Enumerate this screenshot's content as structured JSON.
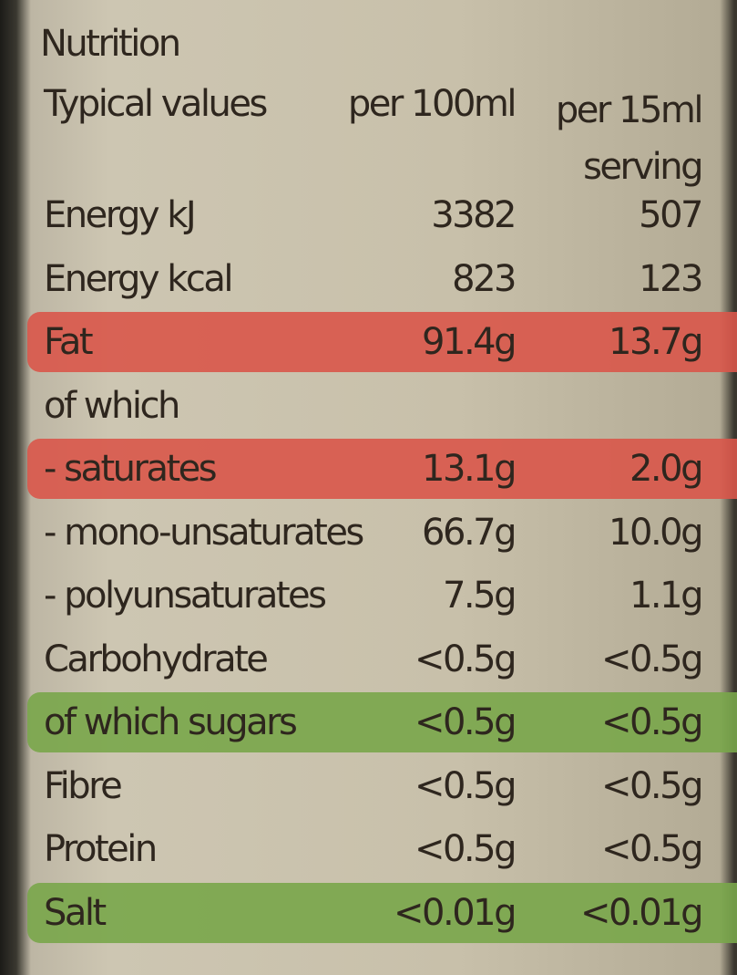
{
  "header": {
    "title": "Nutrition"
  },
  "table": {
    "columns": [
      "Typical values",
      "per 100ml",
      "per 15ml serving"
    ],
    "rows": [
      {
        "cells": [
          "Energy kJ",
          "3382",
          "507"
        ]
      },
      {
        "cells": [
          "Energy kcal",
          "823",
          "123"
        ]
      },
      {
        "cells": [
          "Fat",
          "91.4g",
          "13.7g"
        ],
        "highlight": "#d9574a"
      },
      {
        "cells": [
          "of which"
        ]
      },
      {
        "cells": [
          "- saturates",
          "13.1g",
          "2.0g"
        ],
        "highlight": "#d9574a"
      },
      {
        "cells": [
          "- mono-unsaturates",
          "66.7g",
          "10.0g"
        ]
      },
      {
        "cells": [
          "- polyunsaturates",
          "7.5g",
          "1.1g"
        ]
      },
      {
        "cells": [
          "Carbohydrate",
          "<0.5g",
          "<0.5g"
        ]
      },
      {
        "cells": [
          "of which sugars",
          "<0.5g",
          "<0.5g"
        ],
        "highlight": "#79a64a"
      },
      {
        "cells": [
          "Fibre",
          "<0.5g",
          "<0.5g"
        ]
      },
      {
        "cells": [
          "Protein",
          "<0.5g",
          "<0.5g"
        ]
      },
      {
        "cells": [
          "Salt",
          "<0.01g",
          "<0.01g"
        ],
        "highlight": "#79a64a"
      }
    ]
  }
}
